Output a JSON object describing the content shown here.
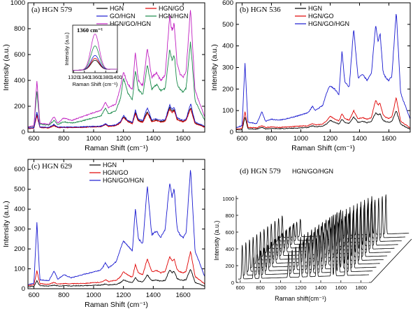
{
  "chart_data": [
    {
      "type": "line",
      "panel": "a",
      "title": "(a) HGN 579",
      "xlabel": "Raman Shift (cm⁻¹)",
      "ylabel": "Intensity (a.u.)",
      "xlim": [
        560,
        1745
      ],
      "ylim": [
        0,
        1000
      ],
      "xticks": [
        600,
        800,
        1000,
        1200,
        1400,
        1600
      ],
      "yticks": [
        0,
        200,
        400,
        600,
        800,
        1000
      ],
      "legend_position": "top",
      "x": [
        560,
        600,
        620,
        640,
        700,
        735,
        760,
        800,
        850,
        900,
        950,
        1000,
        1050,
        1080,
        1100,
        1150,
        1180,
        1200,
        1230,
        1260,
        1280,
        1300,
        1330,
        1360,
        1390,
        1420,
        1450,
        1480,
        1510,
        1525,
        1540,
        1560,
        1580,
        1600,
        1620,
        1650,
        1680,
        1745
      ],
      "series": [
        {
          "name": "HGN",
          "color": "#000000",
          "values": [
            30,
            32,
            140,
            38,
            34,
            55,
            36,
            38,
            37,
            38,
            40,
            42,
            44,
            60,
            46,
            52,
            75,
            120,
            85,
            70,
            150,
            90,
            80,
            160,
            85,
            95,
            82,
            88,
            190,
            160,
            175,
            100,
            90,
            85,
            95,
            190,
            70,
            40
          ]
        },
        {
          "name": "HGN/GO",
          "color": "#e00000",
          "values": [
            28,
            30,
            130,
            36,
            32,
            50,
            34,
            36,
            35,
            36,
            38,
            40,
            42,
            58,
            44,
            50,
            70,
            115,
            80,
            66,
            140,
            85,
            76,
            150,
            80,
            90,
            78,
            84,
            180,
            150,
            165,
            95,
            86,
            80,
            90,
            180,
            66,
            38
          ]
        },
        {
          "name": "GO/HGN",
          "color": "#1a1ad0",
          "values": [
            32,
            34,
            160,
            40,
            36,
            60,
            38,
            40,
            39,
            40,
            42,
            44,
            46,
            65,
            48,
            56,
            80,
            130,
            90,
            75,
            170,
            100,
            88,
            190,
            95,
            105,
            90,
            96,
            210,
            175,
            190,
            110,
            98,
            92,
            100,
            220,
            78,
            45
          ]
        },
        {
          "name": "HGN/HGN",
          "color": "#1a8a4a",
          "values": [
            40,
            45,
            320,
            60,
            55,
            90,
            60,
            80,
            70,
            80,
            95,
            110,
            125,
            190,
            140,
            165,
            260,
            420,
            300,
            250,
            480,
            330,
            290,
            520,
            330,
            370,
            320,
            340,
            640,
            560,
            600,
            370,
            330,
            310,
            340,
            700,
            240,
            90
          ]
        },
        {
          "name": "HGN/GO/HGN",
          "color": "#c020c0",
          "values": [
            40,
            48,
            400,
            70,
            60,
            120,
            70,
            110,
            90,
            110,
            130,
            150,
            170,
            230,
            185,
            220,
            350,
            470,
            370,
            330,
            620,
            400,
            360,
            650,
            420,
            460,
            400,
            440,
            900,
            780,
            840,
            520,
            450,
            420,
            470,
            960,
            320,
            120
          ]
        }
      ],
      "inset": {
        "annotation": "1360 cm⁻¹",
        "xlabel": "Raman Shift (cm⁻¹)",
        "ylabel": "Intensity (a.u.)",
        "xlim": [
          1318,
          1402
        ],
        "xticks": [
          1320,
          1340,
          1360,
          1380,
          1400
        ],
        "peak_center": 1360,
        "peak_heights": [
          {
            "name": "HGN",
            "color": "#000000",
            "value": 0.2
          },
          {
            "name": "HGN/GO",
            "color": "#e00000",
            "value": 0.24
          },
          {
            "name": "GO/HGN",
            "color": "#1a1ad0",
            "value": 0.3
          },
          {
            "name": "HGN/HGN",
            "color": "#1a8a4a",
            "value": 0.5
          },
          {
            "name": "HGN/GO/HGN",
            "color": "#c020c0",
            "value": 0.75
          }
        ]
      }
    },
    {
      "type": "line",
      "panel": "b",
      "title": "(b) HGN 536",
      "xlabel": "Raman Shift (cm⁻¹)",
      "ylabel": "Intensity (a.u.)",
      "xlim": [
        560,
        1745
      ],
      "ylim": [
        0,
        600
      ],
      "xticks": [
        600,
        800,
        1000,
        1200,
        1400,
        1600
      ],
      "yticks": [
        0,
        100,
        200,
        300,
        400,
        500,
        600
      ],
      "legend_position": "top",
      "x": [
        560,
        600,
        620,
        640,
        700,
        735,
        760,
        800,
        850,
        900,
        950,
        1000,
        1050,
        1080,
        1100,
        1150,
        1180,
        1200,
        1230,
        1260,
        1280,
        1300,
        1330,
        1360,
        1390,
        1420,
        1450,
        1480,
        1510,
        1525,
        1540,
        1560,
        1580,
        1600,
        1620,
        1650,
        1680,
        1745
      ],
      "series": [
        {
          "name": "HGN",
          "color": "#000000",
          "values": [
            10,
            12,
            70,
            16,
            14,
            22,
            15,
            17,
            16,
            17,
            18,
            20,
            22,
            30,
            24,
            28,
            40,
            55,
            45,
            38,
            60,
            45,
            40,
            70,
            45,
            50,
            44,
            48,
            90,
            80,
            85,
            55,
            48,
            46,
            50,
            100,
            36,
            14
          ]
        },
        {
          "name": "HGN/GO",
          "color": "#e00000",
          "values": [
            14,
            18,
            95,
            22,
            20,
            30,
            22,
            24,
            22,
            24,
            26,
            28,
            30,
            40,
            33,
            38,
            55,
            75,
            60,
            52,
            85,
            62,
            56,
            100,
            62,
            68,
            60,
            66,
            150,
            125,
            135,
            80,
            68,
            64,
            70,
            160,
            50,
            20
          ]
        },
        {
          "name": "HGN/GO/HGN",
          "color": "#1a1ad0",
          "values": [
            20,
            30,
            320,
            45,
            40,
            95,
            50,
            60,
            55,
            62,
            70,
            80,
            90,
            120,
            100,
            125,
            190,
            215,
            200,
            175,
            375,
            230,
            210,
            485,
            250,
            270,
            240,
            270,
            495,
            420,
            460,
            280,
            250,
            240,
            260,
            560,
            180,
            60
          ]
        }
      ]
    },
    {
      "type": "line",
      "panel": "c",
      "title": "(c) HGN 629",
      "xlabel": "Raman Shift (cm⁻¹)",
      "ylabel": "Intensity (a.u.)",
      "xlim": [
        560,
        1745
      ],
      "ylim": [
        0,
        650
      ],
      "xticks": [
        600,
        800,
        1000,
        1200,
        1400,
        1600
      ],
      "yticks": [
        0,
        100,
        200,
        300,
        400,
        500,
        600
      ],
      "legend_position": "top",
      "x": [
        560,
        600,
        620,
        640,
        700,
        735,
        760,
        800,
        850,
        900,
        950,
        1000,
        1050,
        1080,
        1100,
        1150,
        1180,
        1200,
        1230,
        1260,
        1280,
        1300,
        1330,
        1360,
        1390,
        1420,
        1450,
        1480,
        1510,
        1525,
        1540,
        1560,
        1580,
        1600,
        1620,
        1650,
        1680,
        1745
      ],
      "series": [
        {
          "name": "HGN",
          "color": "#000000",
          "values": [
            10,
            12,
            40,
            15,
            13,
            18,
            14,
            15,
            14,
            15,
            16,
            17,
            18,
            24,
            19,
            22,
            30,
            45,
            36,
            30,
            55,
            38,
            34,
            70,
            40,
            44,
            38,
            42,
            95,
            80,
            88,
            50,
            44,
            42,
            46,
            100,
            32,
            12
          ]
        },
        {
          "name": "HGN/GO",
          "color": "#e00000",
          "values": [
            16,
            20,
            90,
            25,
            22,
            32,
            24,
            26,
            25,
            26,
            28,
            30,
            33,
            45,
            36,
            42,
            60,
            85,
            68,
            58,
            120,
            80,
            70,
            150,
            85,
            92,
            80,
            88,
            160,
            140,
            150,
            95,
            85,
            80,
            88,
            190,
            62,
            24
          ]
        },
        {
          "name": "HGN/GO/HGN",
          "color": "#1a1ad0",
          "values": [
            20,
            28,
            330,
            45,
            40,
            90,
            48,
            70,
            55,
            65,
            75,
            85,
            95,
            130,
            105,
            135,
            200,
            240,
            215,
            190,
            405,
            250,
            225,
            520,
            270,
            290,
            260,
            300,
            535,
            460,
            505,
            300,
            270,
            255,
            280,
            610,
            190,
            60
          ]
        }
      ]
    },
    {
      "type": "waterfall",
      "panel": "d",
      "title": "(d) HGN 579",
      "legend": "HGN/GO/HGN",
      "xlabel": "Raman shift(cm⁻¹)",
      "ylabel": "Intensity (a.u.)",
      "xticks": [
        600,
        800,
        1000,
        1200,
        1400,
        1600,
        1800
      ],
      "yticks": [
        0,
        200,
        400,
        600,
        800,
        1000
      ],
      "peaks": [
        620,
        735,
        800,
        1080,
        1200,
        1280,
        1360,
        1510,
        1540,
        1650
      ],
      "peak_scale": [
        0.55,
        0.35,
        0.45,
        0.4,
        0.65,
        0.55,
        0.6,
        0.95,
        0.8,
        1.0
      ]
    }
  ]
}
